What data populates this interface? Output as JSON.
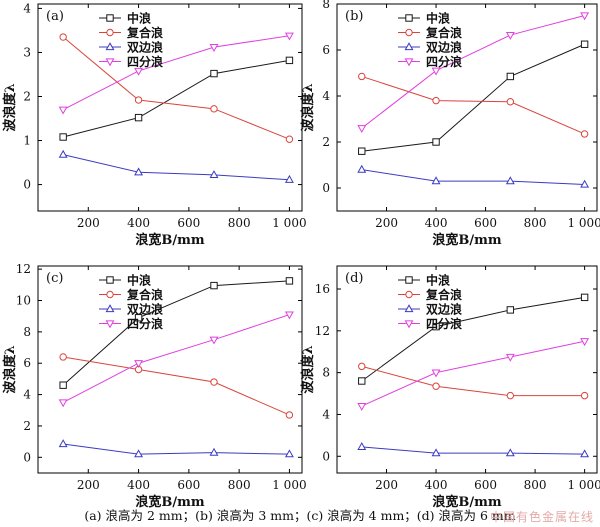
{
  "caption": "(a) 浪高为 2 mm；(b) 浪高为 3 mm；(c) 浪高为 4 mm；(d) 浪高为 6 mm",
  "watermark": "中国有色金属在线",
  "colors": {
    "中浪": "#1a1a1a",
    "复合浪": "#d9453c",
    "双边浪": "#3b3bc2",
    "四分浪": "#e040e0"
  },
  "markers": {
    "中浪": "square",
    "复合浪": "circle",
    "双边浪": "triangle-up",
    "四分浪": "triangle-down"
  },
  "chart_data": [
    {
      "type": "line",
      "panel_label": "(a)",
      "xlabel": "浪宽B/mm",
      "ylabel": "波浪度λ",
      "xlim": [
        0,
        1050
      ],
      "ylim": [
        -0.6,
        4.1
      ],
      "xticks": [
        200,
        400,
        600,
        800,
        1000
      ],
      "xtick_labels": [
        "200",
        "400",
        "600",
        "800",
        "1 000"
      ],
      "yticks": [
        0,
        1,
        2,
        3,
        4
      ],
      "ytick_labels": [
        "0",
        "1",
        "2",
        "3",
        "4"
      ],
      "x": [
        100,
        400,
        700,
        1000
      ],
      "legend_position": "top-left",
      "series": [
        {
          "name": "中浪",
          "values": [
            1.08,
            1.52,
            2.52,
            2.82
          ]
        },
        {
          "name": "复合浪",
          "values": [
            3.35,
            1.92,
            1.72,
            1.03
          ]
        },
        {
          "name": "双边浪",
          "values": [
            0.68,
            0.28,
            0.22,
            0.11
          ]
        },
        {
          "name": "四分浪",
          "values": [
            1.7,
            2.58,
            3.12,
            3.38
          ]
        }
      ]
    },
    {
      "type": "line",
      "panel_label": "(b)",
      "xlabel": "浪宽B/mm",
      "ylabel": "波浪度λ",
      "xlim": [
        0,
        1050
      ],
      "ylim": [
        -1.0,
        8.0
      ],
      "xticks": [
        200,
        400,
        600,
        800,
        1000
      ],
      "xtick_labels": [
        "200",
        "400",
        "600",
        "800",
        "1 000"
      ],
      "yticks": [
        0,
        2,
        4,
        6,
        8
      ],
      "ytick_labels": [
        "0",
        "2",
        "4",
        "6",
        "8"
      ],
      "x": [
        100,
        400,
        700,
        1000
      ],
      "legend_position": "top-left",
      "series": [
        {
          "name": "中浪",
          "values": [
            1.6,
            2.0,
            4.85,
            6.25
          ]
        },
        {
          "name": "复合浪",
          "values": [
            4.85,
            3.8,
            3.75,
            2.35
          ]
        },
        {
          "name": "双边浪",
          "values": [
            0.8,
            0.3,
            0.3,
            0.15
          ]
        },
        {
          "name": "四分浪",
          "values": [
            2.6,
            5.1,
            6.65,
            7.5
          ]
        }
      ]
    },
    {
      "type": "line",
      "panel_label": "(c)",
      "xlabel": "浪宽B/mm",
      "ylabel": "波浪度λ",
      "xlim": [
        0,
        1050
      ],
      "ylim": [
        -1.0,
        12.2
      ],
      "xticks": [
        200,
        400,
        600,
        800,
        1000
      ],
      "xtick_labels": [
        "200",
        "400",
        "600",
        "800",
        "1 000"
      ],
      "yticks": [
        0,
        2,
        4,
        6,
        8,
        10,
        12
      ],
      "ytick_labels": [
        "0",
        "2",
        "4",
        "6",
        "8",
        "10",
        "12"
      ],
      "x": [
        100,
        400,
        700,
        1000
      ],
      "legend_position": "top-left",
      "series": [
        {
          "name": "中浪",
          "values": [
            4.6,
            8.9,
            10.95,
            11.25
          ]
        },
        {
          "name": "复合浪",
          "values": [
            6.4,
            5.6,
            4.8,
            2.7
          ]
        },
        {
          "name": "双边浪",
          "values": [
            0.85,
            0.2,
            0.3,
            0.2
          ]
        },
        {
          "name": "四分浪",
          "values": [
            3.5,
            6.0,
            7.5,
            9.1
          ]
        }
      ]
    },
    {
      "type": "line",
      "panel_label": "(d)",
      "xlabel": "浪宽B/mm",
      "ylabel": "波浪度λ",
      "xlim": [
        0,
        1050
      ],
      "ylim": [
        -1.6,
        18.2
      ],
      "xticks": [
        200,
        400,
        600,
        800,
        1000
      ],
      "xtick_labels": [
        "200",
        "400",
        "600",
        "800",
        "1 000"
      ],
      "yticks": [
        0,
        4,
        8,
        12,
        16
      ],
      "ytick_labels": [
        "0",
        "4",
        "8",
        "12",
        "16"
      ],
      "x": [
        100,
        400,
        700,
        1000
      ],
      "legend_position": "top-left",
      "series": [
        {
          "name": "中浪",
          "values": [
            7.2,
            12.4,
            14.0,
            15.2
          ]
        },
        {
          "name": "复合浪",
          "values": [
            8.6,
            6.7,
            5.8,
            5.8
          ]
        },
        {
          "name": "双边浪",
          "values": [
            0.9,
            0.3,
            0.3,
            0.2
          ]
        },
        {
          "name": "四分浪",
          "values": [
            4.8,
            8.0,
            9.5,
            11.0
          ]
        }
      ]
    }
  ]
}
